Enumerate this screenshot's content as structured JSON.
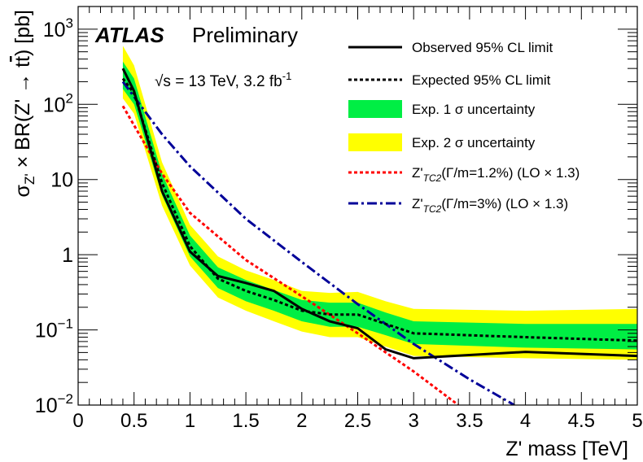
{
  "chart_data": {
    "type": "line",
    "title": "",
    "experiment_label": "ATLAS",
    "experiment_status": "Preliminary",
    "energy_label": "√s = 13 TeV, 3.2 fb",
    "energy_label_sup": "-1",
    "xlabel": "Z' mass [TeV]",
    "ylabel_parts": {
      "pre": "σ",
      "sub": "Z'",
      "post": " × BR(Z' → t",
      "tbar": "t",
      "end": ") [pb]"
    },
    "xscale": "linear",
    "yscale": "log",
    "xlim": [
      0,
      5
    ],
    "ylim": [
      0.01,
      2000
    ],
    "grid": false,
    "legend_position": "top-right",
    "x_ticks": [
      {
        "value": 0,
        "label": "0"
      },
      {
        "value": 0.5,
        "label": "0.5"
      },
      {
        "value": 1,
        "label": "1"
      },
      {
        "value": 1.5,
        "label": "1.5"
      },
      {
        "value": 2,
        "label": "2"
      },
      {
        "value": 2.5,
        "label": "2.5"
      },
      {
        "value": 3,
        "label": "3"
      },
      {
        "value": 3.5,
        "label": "3.5"
      },
      {
        "value": 4,
        "label": "4"
      },
      {
        "value": 4.5,
        "label": "4.5"
      },
      {
        "value": 5,
        "label": "5"
      }
    ],
    "y_ticks": [
      {
        "value": 0.01,
        "base": "10",
        "exp": "−2"
      },
      {
        "value": 0.1,
        "base": "10",
        "exp": "−1"
      },
      {
        "value": 1,
        "base": "1",
        "exp": ""
      },
      {
        "value": 10,
        "base": "10",
        "exp": ""
      },
      {
        "value": 100,
        "base": "10",
        "exp": "2"
      },
      {
        "value": 1000,
        "base": "10",
        "exp": "3"
      }
    ],
    "colors": {
      "observed": "#000000",
      "expected": "#000000",
      "band1": "#00ee44",
      "band2": "#ffff00",
      "tc2_narrow": "#ff0000",
      "tc2_wide": "#000099"
    },
    "legend": [
      {
        "key": "observed",
        "label": "Observed 95% CL limit",
        "style": "solid"
      },
      {
        "key": "expected",
        "label": "Expected 95% CL limit",
        "style": "dotted"
      },
      {
        "key": "band1",
        "label": "Exp. 1 σ uncertainty",
        "style": "band"
      },
      {
        "key": "band2",
        "label": "Exp. 2 σ uncertainty",
        "style": "band"
      },
      {
        "key": "tc2_narrow",
        "label_main": "Z'",
        "label_sub": "TC2",
        "label_rest": "(Γ/m=1.2%) (LO × 1.3)",
        "style": "dotted"
      },
      {
        "key": "tc2_wide",
        "label_main": "Z'",
        "label_sub": "TC2",
        "label_rest": "(Γ/m=3%) (LO × 1.3)",
        "style": "dashdot"
      }
    ],
    "series": [
      {
        "name": "Observed 95% CL limit",
        "key": "observed",
        "x": [
          0.4,
          0.5,
          0.75,
          1.0,
          1.25,
          1.5,
          1.75,
          2.0,
          2.25,
          2.5,
          2.75,
          3.0,
          4.0,
          5.0
        ],
        "y": [
          300,
          150,
          7.0,
          1.1,
          0.52,
          0.42,
          0.33,
          0.19,
          0.13,
          0.105,
          0.055,
          0.042,
          0.051,
          0.045
        ]
      },
      {
        "name": "Expected 95% CL limit",
        "key": "expected",
        "x": [
          0.4,
          0.5,
          0.75,
          1.0,
          1.25,
          1.5,
          1.75,
          2.0,
          2.25,
          2.5,
          2.75,
          3.0,
          4.0,
          5.0
        ],
        "y": [
          220,
          140,
          9.0,
          1.3,
          0.48,
          0.33,
          0.25,
          0.18,
          0.16,
          0.16,
          0.12,
          0.09,
          0.08,
          0.072
        ]
      },
      {
        "name": "Z'TC2 (Γ/m=1.2%) (LO × 1.3)",
        "key": "tc2_narrow",
        "x": [
          0.4,
          0.75,
          1.0,
          1.5,
          2.0,
          2.5,
          3.0,
          3.4
        ],
        "y": [
          95,
          12,
          3.6,
          0.85,
          0.28,
          0.09,
          0.028,
          0.01
        ]
      },
      {
        "name": "Z'TC2 (Γ/m=3%) (LO × 1.3)",
        "key": "tc2_wide",
        "x": [
          0.4,
          0.75,
          1.0,
          1.5,
          2.0,
          2.5,
          3.0,
          3.5,
          3.9
        ],
        "y": [
          200,
          40,
          15,
          3.0,
          0.8,
          0.22,
          0.065,
          0.022,
          0.01
        ]
      }
    ],
    "bands": [
      {
        "name": "Exp. 2 σ uncertainty",
        "key": "band2",
        "x": [
          0.4,
          0.5,
          0.75,
          1.0,
          1.25,
          1.5,
          1.75,
          2.0,
          2.25,
          2.5,
          2.75,
          3.0,
          4.0,
          5.0
        ],
        "lower": [
          120,
          75,
          4.5,
          0.72,
          0.27,
          0.18,
          0.13,
          0.095,
          0.08,
          0.08,
          0.06,
          0.045,
          0.042,
          0.04
        ],
        "upper": [
          600,
          330,
          17,
          2.5,
          0.95,
          0.62,
          0.46,
          0.33,
          0.31,
          0.32,
          0.24,
          0.19,
          0.18,
          0.19
        ]
      },
      {
        "name": "Exp. 1 σ uncertainty",
        "key": "band1",
        "x": [
          0.4,
          0.5,
          0.75,
          1.0,
          1.25,
          1.5,
          1.75,
          2.0,
          2.25,
          2.5,
          2.75,
          3.0,
          4.0,
          5.0
        ],
        "lower": [
          160,
          100,
          6.2,
          0.95,
          0.36,
          0.24,
          0.18,
          0.13,
          0.11,
          0.11,
          0.085,
          0.065,
          0.058,
          0.055
        ],
        "upper": [
          370,
          220,
          12,
          1.8,
          0.68,
          0.46,
          0.34,
          0.25,
          0.23,
          0.23,
          0.17,
          0.13,
          0.12,
          0.12
        ]
      }
    ]
  }
}
